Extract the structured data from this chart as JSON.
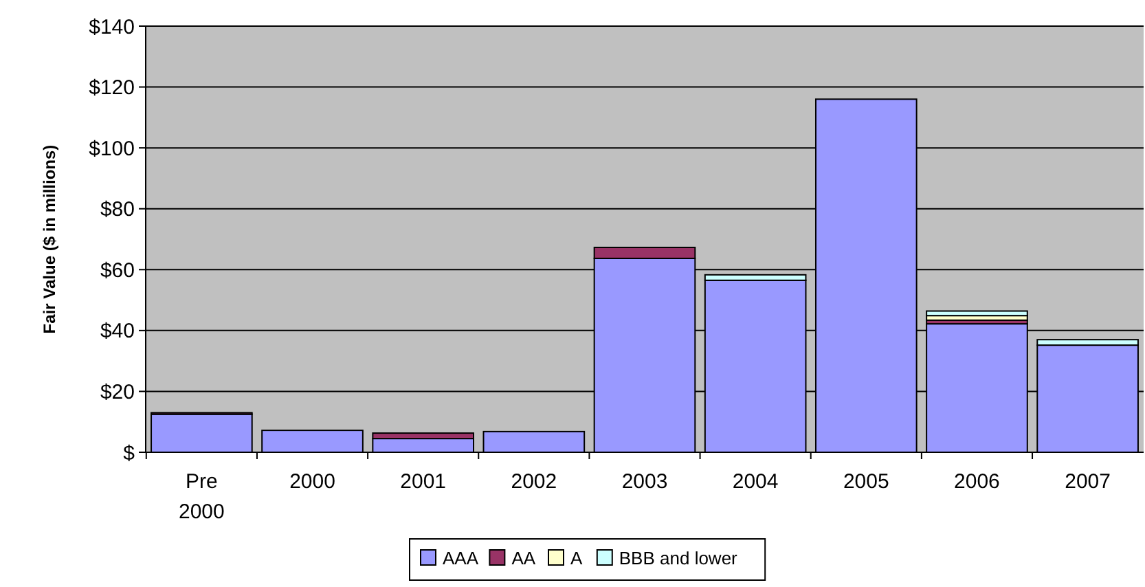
{
  "chart_data": {
    "type": "bar",
    "stacked": true,
    "ylabel": "Fair Value ($ in millions)",
    "categories": [
      "Pre 2000",
      "2000",
      "2001",
      "2002",
      "2003",
      "2004",
      "2005",
      "2006",
      "2007"
    ],
    "series": [
      {
        "name": "AAA",
        "color": "#9999ff",
        "values": [
          12.5,
          7.2,
          4.5,
          6.8,
          63.7,
          56.5,
          116,
          42.2,
          35.2
        ]
      },
      {
        "name": "AA",
        "color": "#993366",
        "values": [
          0.5,
          null,
          1.8,
          null,
          3.6,
          null,
          null,
          1.2,
          null
        ]
      },
      {
        "name": "A",
        "color": "#ffffcc",
        "values": [
          null,
          null,
          null,
          null,
          null,
          null,
          null,
          1.5,
          null
        ]
      },
      {
        "name": "BBB and lower",
        "color": "#ccffff",
        "values": [
          null,
          null,
          null,
          null,
          null,
          1.8,
          null,
          1.5,
          1.8
        ]
      }
    ],
    "ylim": [
      0,
      140
    ],
    "yticks": [
      {
        "value": 0,
        "label": "$"
      },
      {
        "value": 20,
        "label": "$20"
      },
      {
        "value": 40,
        "label": "$40"
      },
      {
        "value": 60,
        "label": "$60"
      },
      {
        "value": 80,
        "label": "$80"
      },
      {
        "value": 100,
        "label": "$100"
      },
      {
        "value": 120,
        "label": "$120"
      },
      {
        "value": 140,
        "label": "$140"
      }
    ],
    "grid": "y",
    "legend": "bottom"
  }
}
